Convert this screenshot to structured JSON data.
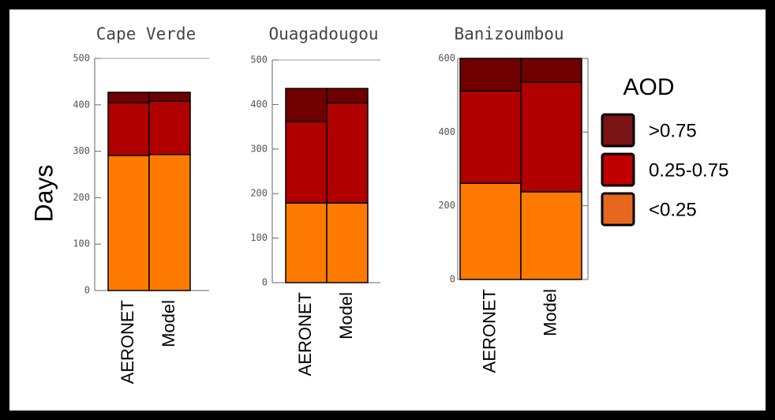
{
  "y_label": "Days",
  "legend": {
    "title": "AOD",
    "items": [
      {
        "name": ">0.75",
        "color": "#7a1416"
      },
      {
        "name": "0.25-0.75",
        "color": "#c00000"
      },
      {
        "name": "<0.25",
        "color": "#e8671e"
      }
    ]
  },
  "chart_data": [
    {
      "type": "bar",
      "stacked": true,
      "title": "Cape Verde",
      "categories": [
        "AERONET",
        "Model"
      ],
      "series": [
        {
          "color": "#ff7a00",
          "values": [
            291,
            293
          ]
        },
        {
          "color": "#b00000",
          "values": [
            114,
            115
          ]
        },
        {
          "color": "#700000",
          "values": [
            22,
            19
          ]
        }
      ],
      "ylim": [
        0,
        500
      ],
      "yticks": [
        0,
        100,
        200,
        300,
        400,
        500
      ]
    },
    {
      "type": "bar",
      "stacked": true,
      "title": "Ouagadougou",
      "categories": [
        "AERONET",
        "Model"
      ],
      "series": [
        {
          "color": "#ff7a00",
          "values": [
            179,
            179
          ]
        },
        {
          "color": "#b00000",
          "values": [
            183,
            225
          ]
        },
        {
          "color": "#700000",
          "values": [
            74,
            32
          ]
        }
      ],
      "ylim": [
        0,
        500
      ],
      "yticks": [
        0,
        100,
        200,
        300,
        400,
        500
      ]
    },
    {
      "type": "bar",
      "stacked": true,
      "title": "Banizoumbou",
      "categories": [
        "AERONET",
        "Model"
      ],
      "series": [
        {
          "color": "#ff7a00",
          "values": [
            261,
            238
          ]
        },
        {
          "color": "#b00000",
          "values": [
            251,
            298
          ]
        },
        {
          "color": "#700000",
          "values": [
            88,
            64
          ]
        }
      ],
      "ylim": [
        0,
        600
      ],
      "yticks": [
        0,
        200,
        400,
        600
      ]
    }
  ]
}
